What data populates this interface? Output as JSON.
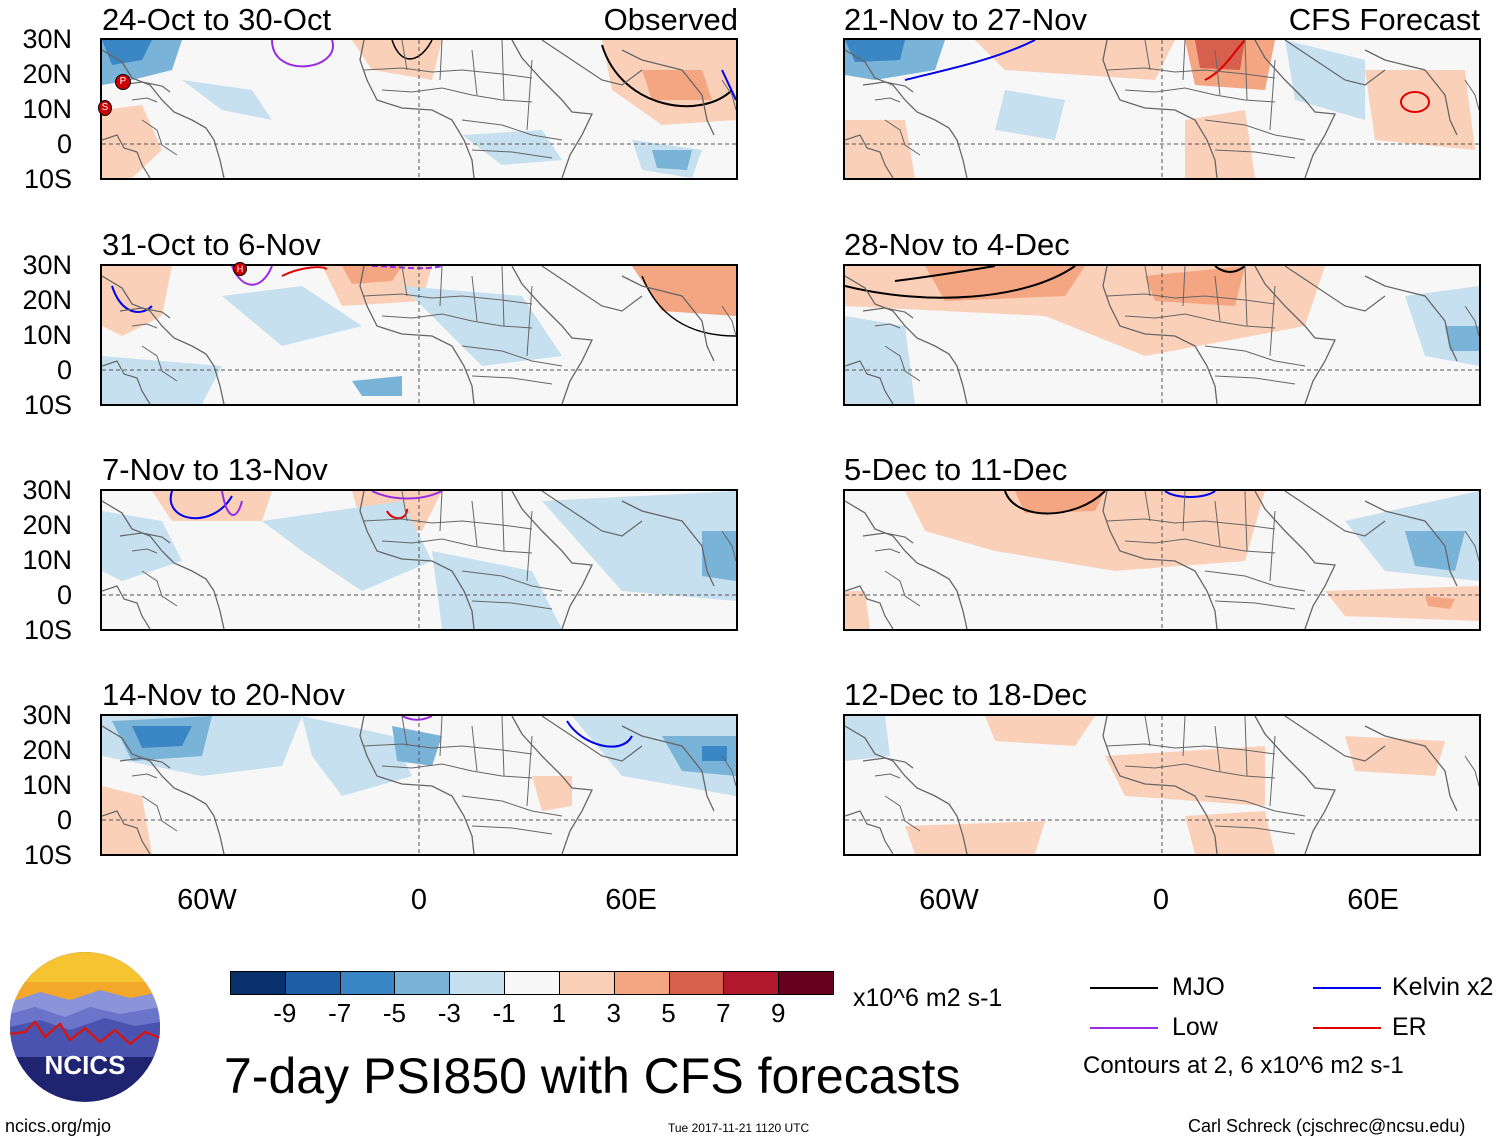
{
  "panels": [
    {
      "id": "p1",
      "title": "24-Oct to 30-Oct",
      "label": "Observed"
    },
    {
      "id": "p2",
      "title": "31-Oct to 6-Nov",
      "label": ""
    },
    {
      "id": "p3",
      "title": "7-Nov to 13-Nov",
      "label": ""
    },
    {
      "id": "p4",
      "title": "14-Nov to 20-Nov",
      "label": ""
    },
    {
      "id": "p5",
      "title": "21-Nov to 27-Nov",
      "label": "CFS Forecast"
    },
    {
      "id": "p6",
      "title": "28-Nov to 4-Dec",
      "label": ""
    },
    {
      "id": "p7",
      "title": "5-Dec to 11-Dec",
      "label": ""
    },
    {
      "id": "p8",
      "title": "12-Dec to 18-Dec",
      "label": ""
    }
  ],
  "lat_labels": [
    "30N",
    "20N",
    "10N",
    "0",
    "10S"
  ],
  "lon_labels": [
    "60W",
    "0",
    "60E"
  ],
  "colorbar": {
    "ticks": [
      "-9",
      "-7",
      "-5",
      "-3",
      "-1",
      "1",
      "3",
      "5",
      "7",
      "9"
    ],
    "colors": [
      "#08306b",
      "#1c5ea8",
      "#3b86c4",
      "#7ab3d8",
      "#c6e0ef",
      "#f7f7f7",
      "#fbd0b9",
      "#f4a582",
      "#d6604d",
      "#b2182b",
      "#67001f"
    ],
    "units": "x10^6 m2 s-1"
  },
  "legend": {
    "items": [
      {
        "label": "MJO",
        "color": "#000000"
      },
      {
        "label": "Kelvin x2",
        "color": "#0000ee"
      },
      {
        "label": "Low",
        "color": "#9a2be2"
      },
      {
        "label": "ER",
        "color": "#e00000"
      }
    ],
    "note": "Contours at 2, 6 x10^6 m2 s-1"
  },
  "logo": {
    "text": "NCICS"
  },
  "main_title": "7-day PSI850 with CFS forecasts",
  "footer": {
    "url": "ncics.org/mjo",
    "timestamp": "Tue 2017-11-21 1120 UTC",
    "credit": "Carl Schreck (cjschrec@ncsu.edu)"
  },
  "storm_markers": [
    "P",
    "S",
    "H"
  ]
}
